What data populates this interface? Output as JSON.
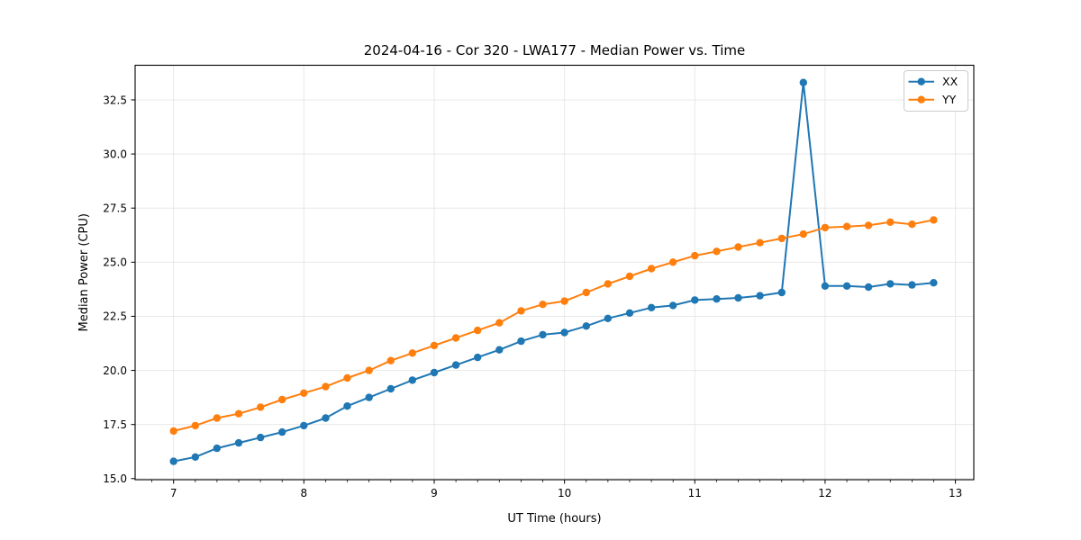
{
  "chart_data": {
    "type": "line",
    "title": "2024-04-16 - Cor 320 - LWA177 - Median Power vs. Time",
    "xlabel": "UT Time (hours)",
    "ylabel": "Median Power (CPU)",
    "xlim": [
      6.705,
      13.141
    ],
    "ylim": [
      14.95,
      34.1
    ],
    "grid": true,
    "grid_color": "#e0e0e0",
    "spine_color": "#000000",
    "legend_position": "upper right",
    "x_minor_tick_step": 0.166667,
    "x_ticks": {
      "values": [
        7,
        8,
        9,
        10,
        11,
        12,
        13
      ],
      "labels": [
        "7",
        "8",
        "9",
        "10",
        "11",
        "12",
        "13"
      ]
    },
    "y_ticks": {
      "values": [
        15.0,
        17.5,
        20.0,
        22.5,
        25.0,
        27.5,
        30.0,
        32.5
      ],
      "labels": [
        "15.0",
        "17.5",
        "20.0",
        "22.5",
        "25.0",
        "27.5",
        "30.0",
        "32.5"
      ]
    },
    "x": [
      7.0,
      7.167,
      7.333,
      7.5,
      7.667,
      7.833,
      8.0,
      8.167,
      8.333,
      8.5,
      8.667,
      8.833,
      9.0,
      9.167,
      9.333,
      9.5,
      9.667,
      9.833,
      10.0,
      10.167,
      10.333,
      10.5,
      10.667,
      10.833,
      11.0,
      11.167,
      11.333,
      11.5,
      11.667,
      11.833,
      12.0,
      12.167,
      12.333,
      12.5,
      12.667,
      12.833
    ],
    "series": [
      {
        "name": "XX",
        "color": "#1f77b4",
        "values": [
          15.8,
          16.0,
          16.4,
          16.65,
          16.9,
          17.15,
          17.45,
          17.8,
          18.35,
          18.75,
          19.15,
          19.55,
          19.9,
          20.25,
          20.6,
          20.95,
          21.35,
          21.65,
          21.75,
          22.05,
          22.4,
          22.65,
          22.9,
          23.0,
          23.25,
          23.3,
          23.35,
          23.45,
          23.6,
          33.3,
          23.9,
          23.9,
          23.85,
          24.0,
          23.95,
          24.05
        ]
      },
      {
        "name": "YY",
        "color": "#ff7f0e",
        "values": [
          17.2,
          17.45,
          17.8,
          18.0,
          18.3,
          18.65,
          18.95,
          19.25,
          19.65,
          20.0,
          20.45,
          20.8,
          21.15,
          21.5,
          21.85,
          22.2,
          22.75,
          23.05,
          23.2,
          23.6,
          24.0,
          24.35,
          24.7,
          25.0,
          25.3,
          25.5,
          25.7,
          25.9,
          26.1,
          26.3,
          26.6,
          26.65,
          26.7,
          26.85,
          26.75,
          26.95
        ]
      }
    ]
  }
}
